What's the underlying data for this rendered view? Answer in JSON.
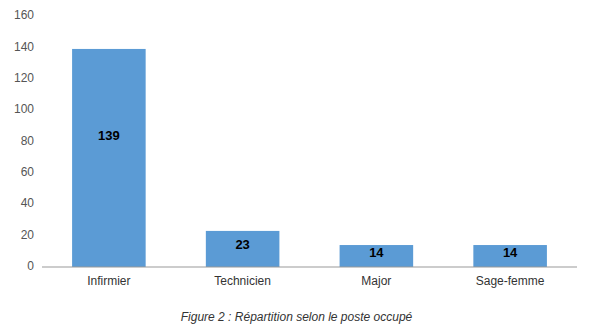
{
  "chart_data": {
    "type": "bar",
    "caption": "Figure 2 : Répartition selon le poste occupé",
    "categories": [
      "Infirmier",
      "Technicien",
      "Major",
      "Sage-femme"
    ],
    "values": [
      139,
      23,
      14,
      14
    ],
    "color": "#5B9BD5",
    "ylim": [
      0,
      160
    ],
    "yticks": [
      0,
      20,
      40,
      60,
      80,
      100,
      120,
      140,
      160
    ],
    "grid": false,
    "data_labels": true
  }
}
